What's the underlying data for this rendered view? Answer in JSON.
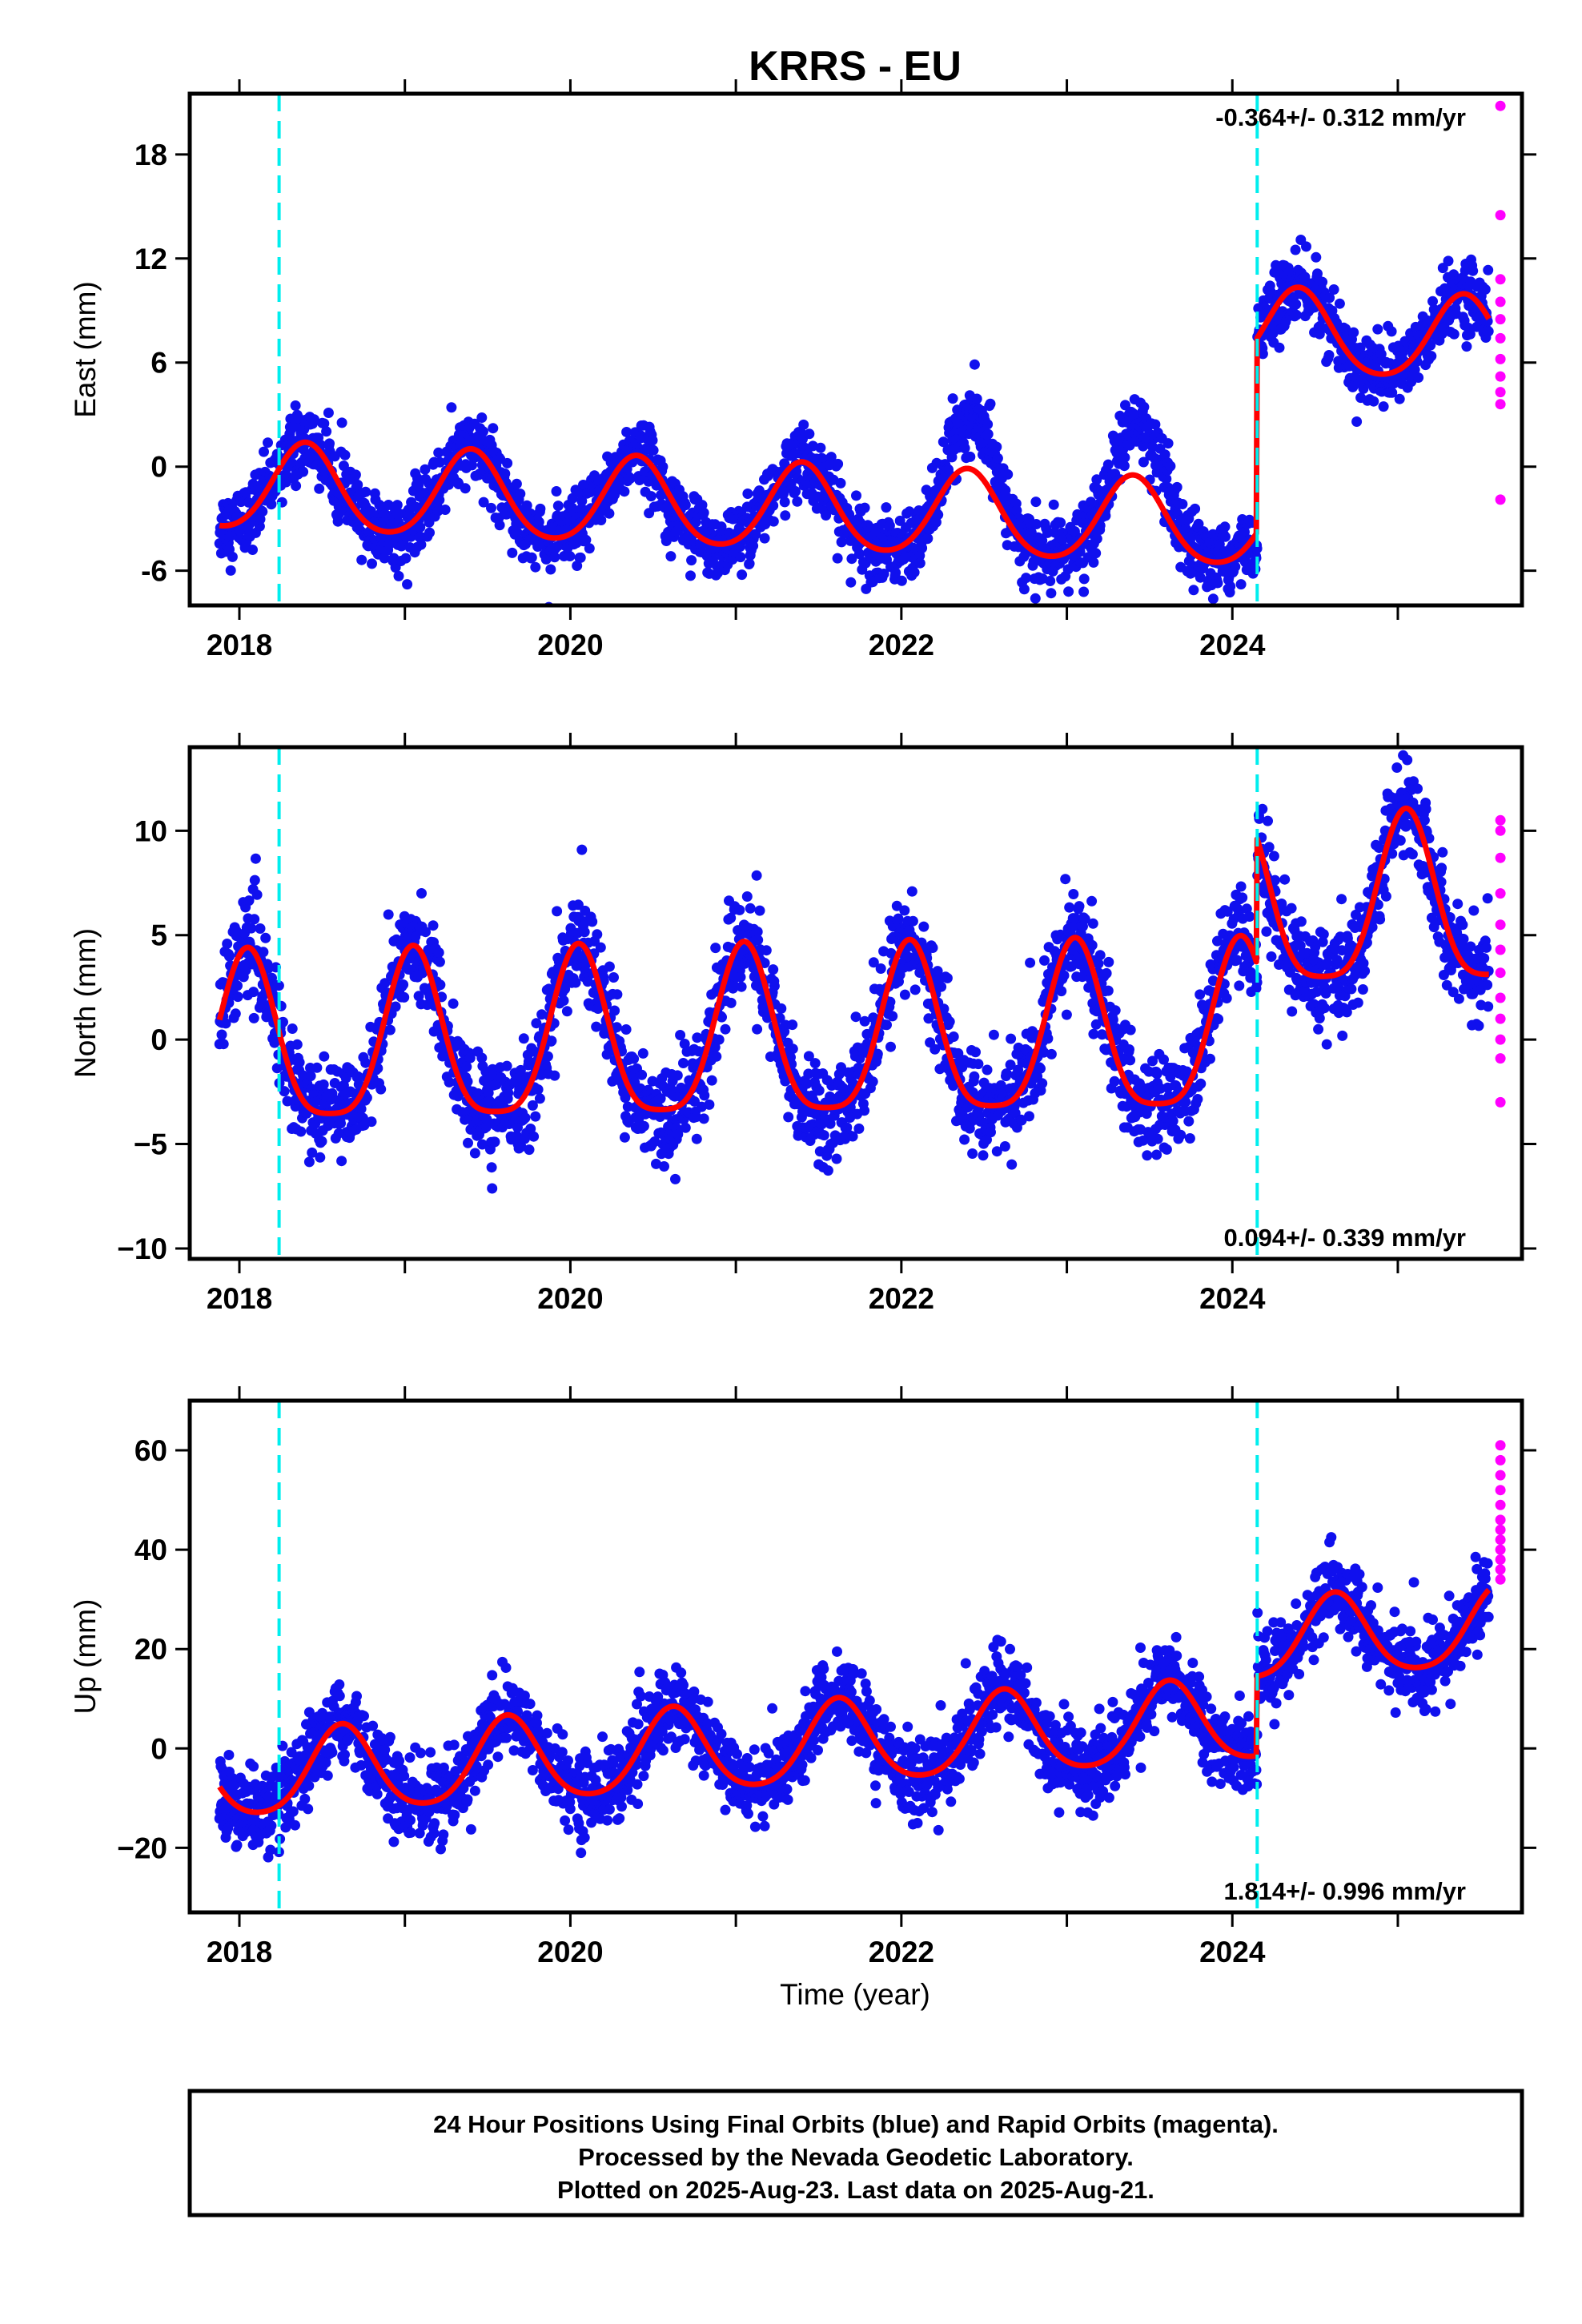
{
  "colors": {
    "final_orbits": "#1010ee",
    "rapid_orbits": "#ff00ff",
    "model_fit": "#ff0000",
    "equipment_change": "#00eeee",
    "frame": "#000000"
  },
  "chart_data": {
    "type": "scatter",
    "title": "KRRS - EU",
    "xlabel": "Time (year)",
    "xlim": [
      2017.7,
      2025.75
    ],
    "x_ticks": [
      2018,
      2019,
      2020,
      2021,
      2022,
      2023,
      2024,
      2025
    ],
    "x_tick_labels": [
      "2018",
      "2020",
      "2022",
      "2024"
    ],
    "x_tick_label_values": [
      2018,
      2020,
      2022,
      2024
    ],
    "last_final_epoch": 2025.55,
    "rapid_epoch": 2025.62,
    "equipment_changes": [
      2018.24,
      2024.15
    ],
    "panels": [
      {
        "component": "East",
        "ylabel": "East (mm)",
        "ylim": [
          -8,
          21.5
        ],
        "y_ticks": [
          -6,
          0,
          6,
          12,
          18
        ],
        "y_tick_labels": [
          "-6",
          "0",
          "6",
          "12",
          "18"
        ],
        "rate_text": "-0.364+/- 0.312 mm/yr",
        "rate_position": "top-right",
        "model": {
          "offset": -1.2,
          "rate": -0.364,
          "period_phase_peak": 2018.4,
          "annual_amplitude": 2.5,
          "amp_end": 2.4,
          "semiannual_amplitude": 0.3,
          "breaks": [
            {
              "epoch": 2024.15,
              "step": 11.2
            }
          ]
        },
        "anomalies": [
          {
            "from": 2022.0,
            "to": 2023.9,
            "delta": 2.8
          }
        ],
        "scatter_sigma": 1.0,
        "rapid_values": [
          20.8,
          14.5,
          10.8,
          9.5,
          8.5,
          7.4,
          6.2,
          5.2,
          4.3,
          3.6,
          -1.9
        ]
      },
      {
        "component": "North",
        "ylabel": "North (mm)",
        "ylim": [
          -10.5,
          14
        ],
        "y_ticks": [
          -10,
          -5,
          0,
          5,
          10
        ],
        "y_tick_labels": [
          "−10",
          "−5",
          "0",
          "5",
          "10"
        ],
        "rate_text": "0.094+/- 0.339 mm/yr",
        "rate_position": "bottom-right",
        "model": {
          "offset": -0.5,
          "rate": 0.094,
          "period_phase_peak": 2018.05,
          "annual_amplitude": 4.0,
          "amp_end": 4.0,
          "semiannual_amplitude": 0.9,
          "breaks": [
            {
              "epoch": 2024.15,
              "step": 6.0
            }
          ]
        },
        "anomalies": [],
        "scatter_sigma": 1.2,
        "rapid_values": [
          10.5,
          10.0,
          8.7,
          7.0,
          5.5,
          4.3,
          3.2,
          2.0,
          1.0,
          0.0,
          -0.9,
          -3.0
        ]
      },
      {
        "component": "Up",
        "ylabel": "Up (mm)",
        "ylim": [
          -33,
          70
        ],
        "y_ticks": [
          -20,
          0,
          20,
          40,
          60
        ],
        "y_tick_labels": [
          "−20",
          "0",
          "20",
          "40",
          "60"
        ],
        "rate_text": "1.814+/- 0.996 mm/yr",
        "rate_position": "bottom-right",
        "model": {
          "offset": -6.0,
          "rate": 1.814,
          "period_phase_peak": 2018.62,
          "annual_amplitude": 8.5,
          "amp_end": 8.0,
          "semiannual_amplitude": 1.2,
          "breaks": [
            {
              "epoch": 2024.15,
              "step": 16.0
            }
          ]
        },
        "anomalies": [],
        "scatter_sigma": 4.0,
        "rapid_values": [
          61,
          58,
          55,
          52,
          49,
          46,
          44,
          42,
          40,
          38,
          36,
          34
        ]
      }
    ]
  },
  "footer": {
    "line1": "24 Hour Positions Using Final Orbits (blue) and Rapid Orbits (magenta).",
    "line2": "Processed by the Nevada Geodetic Laboratory.",
    "line3": "Plotted on 2025-Aug-23. Last data on 2025-Aug-21."
  }
}
